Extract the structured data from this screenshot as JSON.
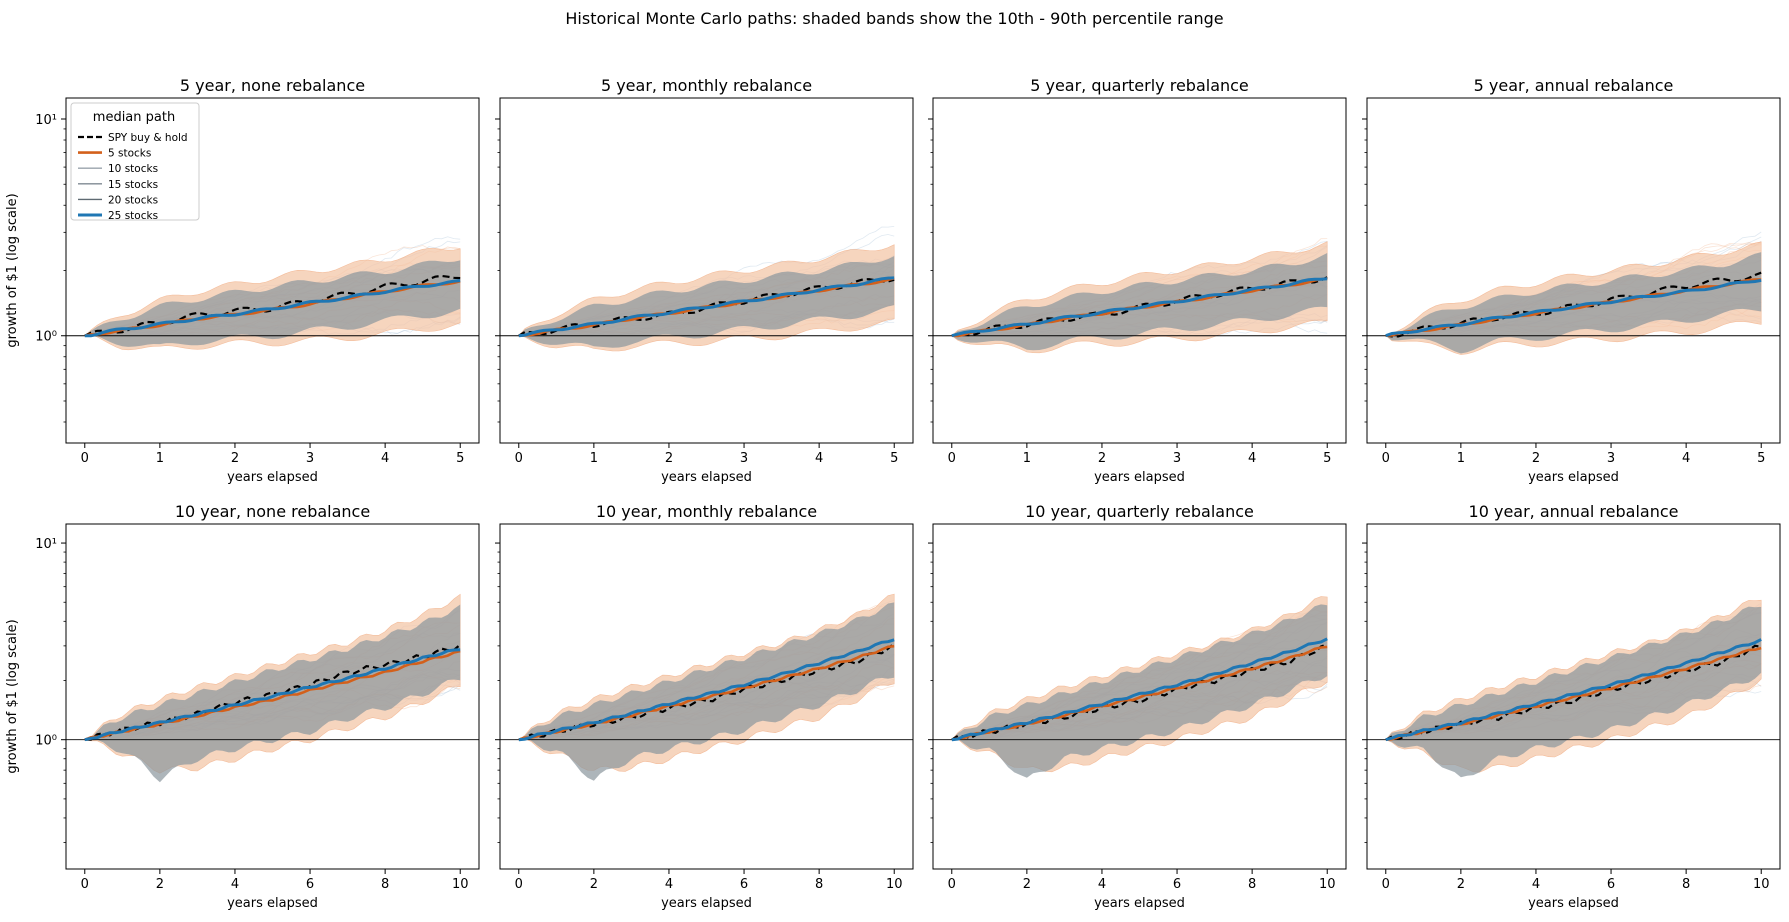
{
  "figure": {
    "suptitle": "Historical Monte Carlo paths: shaded bands show the 10th - 90th percentile range",
    "colors": {
      "spy": "#000000",
      "stocks_5": "#d3601b",
      "stocks_10": "#9aa3ab",
      "stocks_15": "#7f8a93",
      "stocks_20": "#5f6a72",
      "stocks_25": "#1f77b4",
      "band_5": "#f4c7a9",
      "band_gray": "#8a969d",
      "hline": "#000000"
    },
    "legend": {
      "title": "median path",
      "placement": "upper-left",
      "entries": [
        {
          "label": "SPY buy & hold",
          "color": "#000000",
          "style": "dashed"
        },
        {
          "label": "5 stocks",
          "color": "#d3601b",
          "style": "solid"
        },
        {
          "label": "10 stocks",
          "color": "#9aa3ab",
          "style": "solid"
        },
        {
          "label": "15 stocks",
          "color": "#7f8a93",
          "style": "solid"
        },
        {
          "label": "20 stocks",
          "color": "#5f6a72",
          "style": "solid"
        },
        {
          "label": "25 stocks",
          "color": "#1f77b4",
          "style": "solid"
        }
      ]
    }
  },
  "chart_data": [
    {
      "type": "line",
      "title": "5 year, none rebalance",
      "xlabel": "years elapsed",
      "ylabel": "growth of $1 (log scale)",
      "xlim": [
        -0.25,
        5.25
      ],
      "ylim": [
        0.32,
        12.5
      ],
      "yscale": "log",
      "xticks": [
        0,
        1,
        2,
        3,
        4,
        5
      ],
      "yticks": [
        {
          "value": 1,
          "label": "10⁰"
        },
        {
          "value": 10,
          "label": "10¹"
        }
      ],
      "hline": 1,
      "grid": false,
      "x": [
        0,
        0.5,
        1,
        1.5,
        2,
        2.5,
        3,
        3.5,
        4,
        4.5,
        5
      ],
      "series": [
        {
          "name": "SPY buy & hold",
          "values": [
            1.0,
            1.07,
            1.15,
            1.24,
            1.3,
            1.34,
            1.45,
            1.55,
            1.68,
            1.78,
            1.9
          ]
        },
        {
          "name": "5 stocks",
          "values": [
            1.0,
            1.06,
            1.12,
            1.2,
            1.25,
            1.32,
            1.4,
            1.5,
            1.6,
            1.7,
            1.78
          ]
        },
        {
          "name": "25 stocks",
          "values": [
            1.0,
            1.07,
            1.13,
            1.2,
            1.26,
            1.33,
            1.42,
            1.5,
            1.6,
            1.7,
            1.78
          ]
        }
      ],
      "band_5": {
        "low": [
          1.0,
          0.9,
          0.86,
          0.9,
          0.92,
          0.93,
          0.95,
          0.98,
          1.02,
          1.08,
          1.12
        ],
        "high": [
          1.0,
          1.25,
          1.45,
          1.6,
          1.72,
          1.85,
          1.98,
          2.1,
          2.25,
          2.42,
          2.6
        ]
      },
      "band_25": {
        "low": [
          1.0,
          0.93,
          0.88,
          0.94,
          0.97,
          1.0,
          1.05,
          1.1,
          1.17,
          1.24,
          1.3
        ],
        "high": [
          1.0,
          1.2,
          1.36,
          1.48,
          1.58,
          1.68,
          1.78,
          1.88,
          1.98,
          2.12,
          2.3
        ]
      }
    },
    {
      "type": "line",
      "title": "5 year, monthly rebalance",
      "xlabel": "years elapsed",
      "ylabel": "",
      "xlim": [
        -0.25,
        5.25
      ],
      "ylim": [
        0.32,
        12.5
      ],
      "yscale": "log",
      "xticks": [
        0,
        1,
        2,
        3,
        4,
        5
      ],
      "yticks": [],
      "hline": 1,
      "grid": false,
      "x": [
        0,
        0.5,
        1,
        1.5,
        2,
        2.5,
        3,
        3.5,
        4,
        4.5,
        5
      ],
      "series": [
        {
          "name": "SPY buy & hold",
          "values": [
            1.0,
            1.07,
            1.13,
            1.2,
            1.25,
            1.35,
            1.45,
            1.55,
            1.65,
            1.75,
            1.85
          ]
        },
        {
          "name": "5 stocks",
          "values": [
            1.0,
            1.06,
            1.12,
            1.2,
            1.27,
            1.35,
            1.43,
            1.52,
            1.62,
            1.72,
            1.82
          ]
        },
        {
          "name": "25 stocks",
          "values": [
            1.0,
            1.07,
            1.13,
            1.21,
            1.28,
            1.36,
            1.44,
            1.53,
            1.63,
            1.73,
            1.85
          ]
        }
      ],
      "band_5": {
        "low": [
          1.0,
          0.9,
          0.85,
          0.9,
          0.92,
          0.94,
          0.97,
          1.0,
          1.04,
          1.1,
          1.15
        ],
        "high": [
          1.0,
          1.26,
          1.46,
          1.62,
          1.75,
          1.88,
          2.0,
          2.12,
          2.27,
          2.44,
          2.65
        ]
      },
      "band_25": {
        "low": [
          1.0,
          0.93,
          0.87,
          0.94,
          0.98,
          1.02,
          1.07,
          1.12,
          1.18,
          1.25,
          1.33
        ],
        "high": [
          1.0,
          1.2,
          1.36,
          1.48,
          1.6,
          1.7,
          1.8,
          1.9,
          2.0,
          2.14,
          2.35
        ]
      }
    },
    {
      "type": "line",
      "title": "5 year, quarterly rebalance",
      "xlabel": "years elapsed",
      "ylabel": "",
      "xlim": [
        -0.25,
        5.25
      ],
      "ylim": [
        0.32,
        12.5
      ],
      "yscale": "log",
      "xticks": [
        0,
        1,
        2,
        3,
        4,
        5
      ],
      "yticks": [],
      "hline": 1,
      "grid": false,
      "x": [
        0,
        0.5,
        1,
        1.5,
        2,
        2.5,
        3,
        3.5,
        4,
        4.5,
        5
      ],
      "series": [
        {
          "name": "SPY buy & hold",
          "values": [
            1.0,
            1.07,
            1.13,
            1.2,
            1.25,
            1.35,
            1.45,
            1.55,
            1.65,
            1.75,
            1.85
          ]
        },
        {
          "name": "5 stocks",
          "values": [
            1.0,
            1.06,
            1.12,
            1.2,
            1.27,
            1.35,
            1.43,
            1.52,
            1.62,
            1.72,
            1.82
          ]
        },
        {
          "name": "25 stocks",
          "values": [
            1.0,
            1.07,
            1.13,
            1.21,
            1.28,
            1.36,
            1.44,
            1.53,
            1.63,
            1.73,
            1.85
          ]
        }
      ],
      "band_5": {
        "low": [
          1.0,
          0.9,
          0.85,
          0.9,
          0.92,
          0.94,
          0.97,
          1.0,
          1.04,
          1.1,
          1.15
        ],
        "high": [
          1.0,
          1.26,
          1.46,
          1.62,
          1.75,
          1.88,
          2.0,
          2.12,
          2.27,
          2.44,
          2.65
        ]
      },
      "band_25": {
        "low": [
          1.0,
          0.93,
          0.87,
          0.94,
          0.98,
          1.02,
          1.07,
          1.12,
          1.18,
          1.25,
          1.33
        ],
        "high": [
          1.0,
          1.2,
          1.36,
          1.48,
          1.6,
          1.7,
          1.8,
          1.9,
          2.0,
          2.14,
          2.35
        ]
      }
    },
    {
      "type": "line",
      "title": "5 year, annual rebalance",
      "xlabel": "years elapsed",
      "ylabel": "",
      "xlim": [
        -0.25,
        5.25
      ],
      "ylim": [
        0.32,
        12.5
      ],
      "yscale": "log",
      "xticks": [
        0,
        1,
        2,
        3,
        4,
        5
      ],
      "yticks": [],
      "hline": 1,
      "grid": false,
      "x": [
        0,
        0.5,
        1,
        1.5,
        2,
        2.5,
        3,
        3.5,
        4,
        4.5,
        5
      ],
      "series": [
        {
          "name": "SPY buy & hold",
          "values": [
            1.0,
            1.07,
            1.14,
            1.22,
            1.27,
            1.36,
            1.46,
            1.57,
            1.7,
            1.8,
            1.9
          ]
        },
        {
          "name": "5 stocks",
          "values": [
            1.0,
            1.06,
            1.12,
            1.2,
            1.27,
            1.35,
            1.43,
            1.52,
            1.62,
            1.72,
            1.82
          ]
        },
        {
          "name": "25 stocks",
          "values": [
            1.0,
            1.07,
            1.13,
            1.21,
            1.28,
            1.36,
            1.44,
            1.52,
            1.6,
            1.7,
            1.82
          ]
        }
      ],
      "band_5": {
        "low": [
          1.0,
          0.9,
          0.85,
          0.9,
          0.92,
          0.94,
          0.97,
          1.0,
          1.04,
          1.1,
          1.15
        ],
        "high": [
          1.0,
          1.26,
          1.46,
          1.62,
          1.75,
          1.88,
          2.0,
          2.12,
          2.27,
          2.44,
          2.62
        ]
      },
      "band_25": {
        "low": [
          1.0,
          0.93,
          0.86,
          0.94,
          0.98,
          1.02,
          1.07,
          1.12,
          1.18,
          1.25,
          1.32
        ],
        "high": [
          1.0,
          1.2,
          1.36,
          1.48,
          1.6,
          1.7,
          1.8,
          1.9,
          2.0,
          2.14,
          2.35
        ]
      }
    },
    {
      "type": "line",
      "title": "10 year, none rebalance",
      "xlabel": "years elapsed",
      "ylabel": "growth of $1 (log scale)",
      "xlim": [
        -0.5,
        10.5
      ],
      "ylim": [
        0.22,
        12.5
      ],
      "yscale": "log",
      "xticks": [
        0,
        2,
        4,
        6,
        8,
        10
      ],
      "yticks": [
        {
          "value": 1,
          "label": "10⁰"
        },
        {
          "value": 10,
          "label": "10¹"
        }
      ],
      "hline": 1,
      "grid": false,
      "x": [
        0,
        1,
        2,
        3,
        4,
        5,
        6,
        7,
        8,
        9,
        10
      ],
      "series": [
        {
          "name": "SPY buy & hold",
          "values": [
            1.0,
            1.12,
            1.22,
            1.35,
            1.55,
            1.7,
            1.9,
            2.2,
            2.4,
            2.65,
            3.0
          ]
        },
        {
          "name": "5 stocks",
          "values": [
            1.0,
            1.1,
            1.2,
            1.32,
            1.46,
            1.6,
            1.78,
            1.98,
            2.2,
            2.5,
            2.8
          ]
        },
        {
          "name": "25 stocks",
          "values": [
            1.0,
            1.11,
            1.22,
            1.35,
            1.5,
            1.66,
            1.85,
            2.05,
            2.3,
            2.6,
            2.9
          ]
        }
      ],
      "band_5": {
        "low": [
          1.0,
          0.85,
          0.7,
          0.72,
          0.8,
          0.9,
          1.0,
          1.15,
          1.3,
          1.55,
          1.9
        ],
        "high": [
          1.0,
          1.35,
          1.6,
          1.85,
          2.1,
          2.4,
          2.75,
          3.1,
          3.6,
          4.3,
          5.3
        ]
      },
      "band_25": {
        "low": [
          1.0,
          0.88,
          0.63,
          0.8,
          0.9,
          1.0,
          1.1,
          1.28,
          1.45,
          1.7,
          2.05
        ],
        "high": [
          1.0,
          1.3,
          1.5,
          1.72,
          1.96,
          2.25,
          2.55,
          2.9,
          3.35,
          3.9,
          4.7
        ]
      }
    },
    {
      "type": "line",
      "title": "10 year, monthly rebalance",
      "xlabel": "years elapsed",
      "ylabel": "",
      "xlim": [
        -0.5,
        10.5
      ],
      "ylim": [
        0.22,
        12.5
      ],
      "yscale": "log",
      "xticks": [
        0,
        2,
        4,
        6,
        8,
        10
      ],
      "yticks": [],
      "hline": 1,
      "grid": false,
      "x": [
        0,
        1,
        2,
        3,
        4,
        5,
        6,
        7,
        8,
        9,
        10
      ],
      "series": [
        {
          "name": "SPY buy & hold",
          "values": [
            1.0,
            1.1,
            1.2,
            1.3,
            1.45,
            1.58,
            1.8,
            2.0,
            2.25,
            2.5,
            3.0
          ]
        },
        {
          "name": "5 stocks",
          "values": [
            1.0,
            1.1,
            1.2,
            1.33,
            1.48,
            1.64,
            1.83,
            2.05,
            2.3,
            2.6,
            3.0
          ]
        },
        {
          "name": "25 stocks",
          "values": [
            1.0,
            1.11,
            1.22,
            1.36,
            1.52,
            1.7,
            1.9,
            2.15,
            2.45,
            2.8,
            3.25
          ]
        }
      ],
      "band_5": {
        "low": [
          1.0,
          0.85,
          0.7,
          0.72,
          0.8,
          0.9,
          1.0,
          1.15,
          1.3,
          1.6,
          2.0
        ],
        "high": [
          1.0,
          1.35,
          1.6,
          1.85,
          2.1,
          2.4,
          2.75,
          3.1,
          3.6,
          4.3,
          5.4
        ]
      },
      "band_25": {
        "low": [
          1.0,
          0.88,
          0.62,
          0.8,
          0.9,
          1.0,
          1.12,
          1.3,
          1.5,
          1.78,
          2.15
        ],
        "high": [
          1.0,
          1.3,
          1.5,
          1.72,
          1.97,
          2.27,
          2.6,
          3.0,
          3.45,
          4.05,
          4.9
        ]
      }
    },
    {
      "type": "line",
      "title": "10 year, quarterly rebalance",
      "xlabel": "years elapsed",
      "ylabel": "",
      "xlim": [
        -0.5,
        10.5
      ],
      "ylim": [
        0.22,
        12.5
      ],
      "yscale": "log",
      "xticks": [
        0,
        2,
        4,
        6,
        8,
        10
      ],
      "yticks": [],
      "hline": 1,
      "grid": false,
      "x": [
        0,
        1,
        2,
        3,
        4,
        5,
        6,
        7,
        8,
        9,
        10
      ],
      "series": [
        {
          "name": "SPY buy & hold",
          "values": [
            1.0,
            1.1,
            1.2,
            1.3,
            1.45,
            1.58,
            1.8,
            2.0,
            2.25,
            2.5,
            3.0
          ]
        },
        {
          "name": "5 stocks",
          "values": [
            1.0,
            1.1,
            1.2,
            1.33,
            1.48,
            1.64,
            1.83,
            2.05,
            2.3,
            2.6,
            3.0
          ]
        },
        {
          "name": "25 stocks",
          "values": [
            1.0,
            1.11,
            1.22,
            1.36,
            1.52,
            1.7,
            1.9,
            2.15,
            2.45,
            2.8,
            3.25
          ]
        }
      ],
      "band_5": {
        "low": [
          1.0,
          0.85,
          0.7,
          0.72,
          0.8,
          0.9,
          1.0,
          1.15,
          1.3,
          1.6,
          2.0
        ],
        "high": [
          1.0,
          1.35,
          1.6,
          1.85,
          2.1,
          2.4,
          2.75,
          3.1,
          3.6,
          4.3,
          5.4
        ]
      },
      "band_25": {
        "low": [
          1.0,
          0.88,
          0.62,
          0.8,
          0.9,
          1.0,
          1.12,
          1.3,
          1.5,
          1.78,
          2.15
        ],
        "high": [
          1.0,
          1.3,
          1.5,
          1.72,
          1.97,
          2.27,
          2.6,
          3.0,
          3.45,
          4.05,
          4.9
        ]
      }
    },
    {
      "type": "line",
      "title": "10 year, annual rebalance",
      "xlabel": "years elapsed",
      "ylabel": "",
      "xlim": [
        -0.5,
        10.5
      ],
      "ylim": [
        0.22,
        12.5
      ],
      "yscale": "log",
      "xticks": [
        0,
        2,
        4,
        6,
        8,
        10
      ],
      "yticks": [],
      "hline": 1,
      "grid": false,
      "x": [
        0,
        1,
        2,
        3,
        4,
        5,
        6,
        7,
        8,
        9,
        10
      ],
      "series": [
        {
          "name": "SPY buy & hold",
          "values": [
            1.0,
            1.1,
            1.2,
            1.3,
            1.45,
            1.58,
            1.8,
            2.0,
            2.25,
            2.5,
            3.0
          ]
        },
        {
          "name": "5 stocks",
          "values": [
            1.0,
            1.1,
            1.2,
            1.33,
            1.48,
            1.64,
            1.83,
            2.05,
            2.3,
            2.6,
            2.95
          ]
        },
        {
          "name": "25 stocks",
          "values": [
            1.0,
            1.11,
            1.22,
            1.36,
            1.52,
            1.7,
            1.9,
            2.15,
            2.45,
            2.8,
            3.2
          ]
        }
      ],
      "band_5": {
        "low": [
          1.0,
          0.85,
          0.7,
          0.72,
          0.8,
          0.9,
          1.0,
          1.15,
          1.3,
          1.6,
          2.0
        ],
        "high": [
          1.0,
          1.35,
          1.6,
          1.85,
          2.1,
          2.4,
          2.75,
          3.1,
          3.6,
          4.3,
          5.3
        ]
      },
      "band_25": {
        "low": [
          1.0,
          0.88,
          0.62,
          0.8,
          0.9,
          1.0,
          1.12,
          1.3,
          1.5,
          1.78,
          2.15
        ],
        "high": [
          1.0,
          1.3,
          1.5,
          1.72,
          1.97,
          2.27,
          2.6,
          3.0,
          3.45,
          4.05,
          4.9
        ]
      }
    }
  ]
}
